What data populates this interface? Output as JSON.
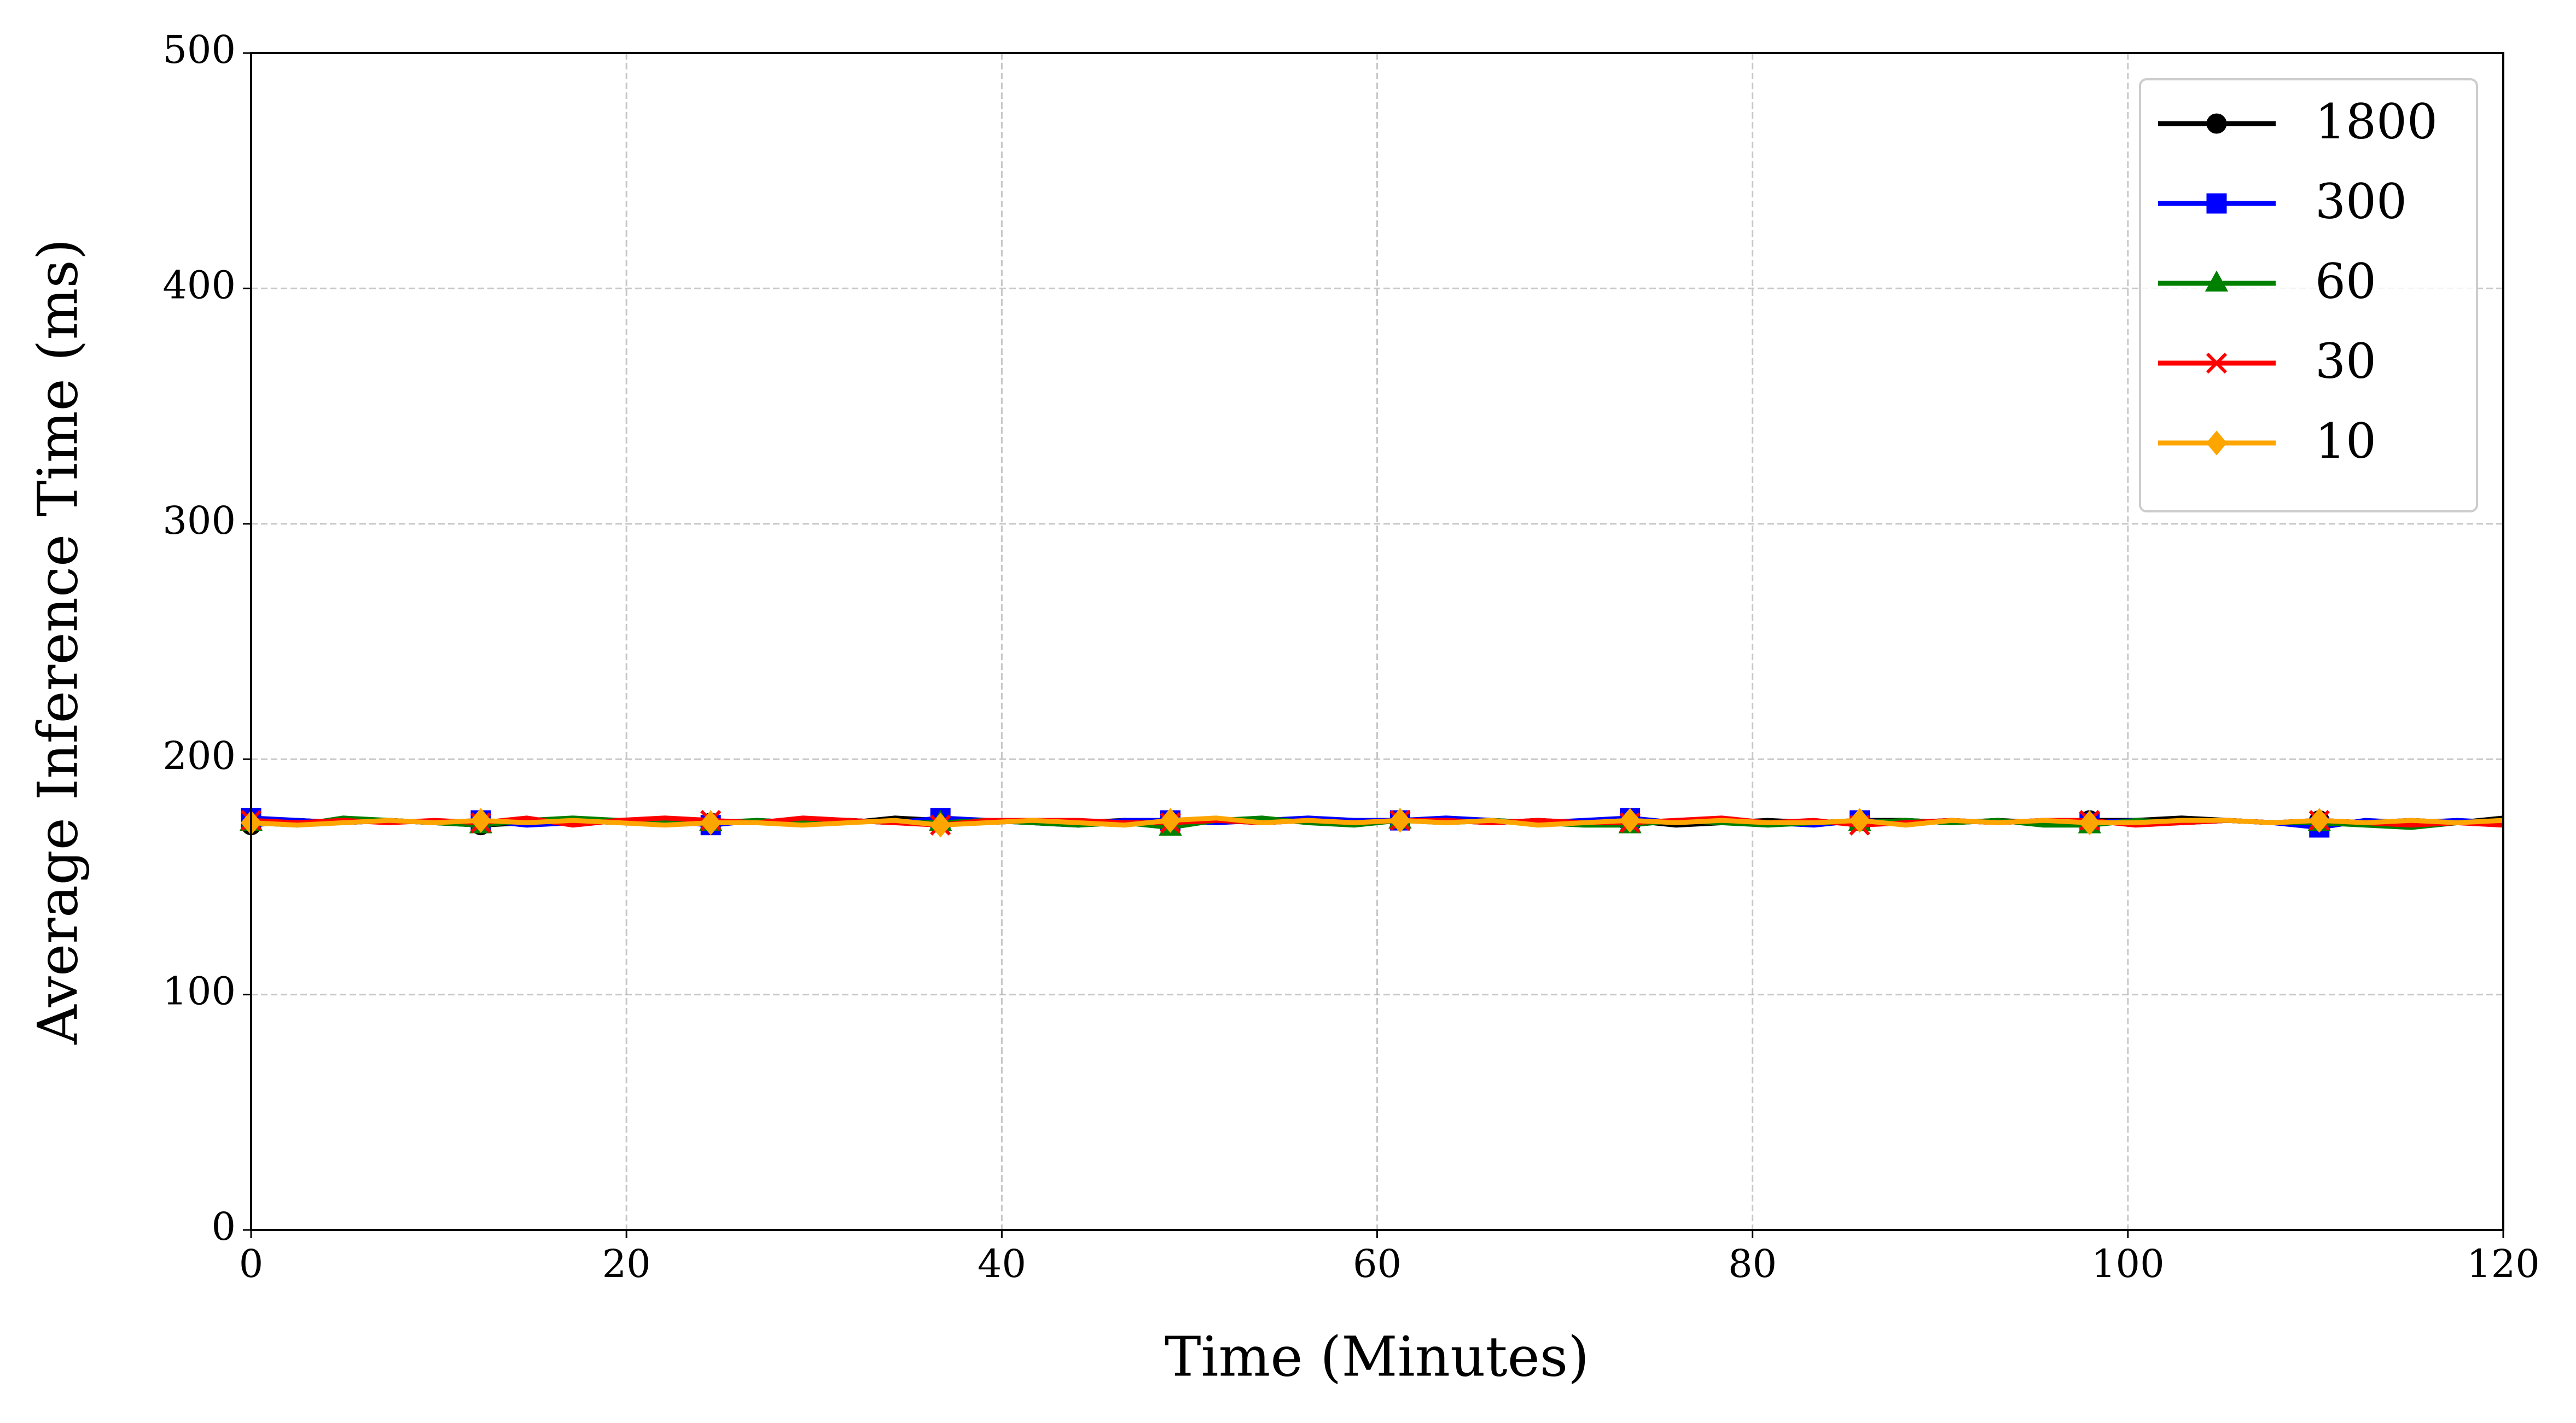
{
  "chart_data": {
    "type": "line",
    "xlabel": "Time (Minutes)",
    "ylabel": "Average Inference Time (ms)",
    "x": [
      0,
      2.45,
      4.9,
      7.35,
      9.8,
      12.24,
      14.69,
      17.14,
      19.59,
      22.04,
      24.49,
      26.94,
      29.39,
      31.84,
      34.29,
      36.73,
      39.18,
      41.63,
      44.08,
      46.53,
      48.98,
      51.43,
      53.88,
      56.33,
      58.78,
      61.22,
      63.67,
      66.12,
      68.57,
      71.02,
      73.47,
      75.92,
      78.37,
      80.82,
      83.27,
      85.71,
      88.16,
      90.61,
      93.06,
      95.51,
      97.96,
      100.41,
      102.86,
      105.31,
      107.76,
      110.2,
      112.65,
      115.1,
      117.55,
      120
    ],
    "series": [
      {
        "name": "1800",
        "color": "#000000",
        "marker": "o",
        "values": [
          172,
          174,
          173,
          174,
          173,
          172,
          173,
          174,
          173,
          174,
          173,
          173,
          174,
          173,
          175,
          174,
          173,
          174,
          173,
          174,
          173,
          174,
          173,
          174,
          173,
          174,
          174,
          173,
          174,
          173,
          174,
          172,
          173,
          174,
          173,
          174,
          174,
          173,
          174,
          173,
          174,
          174,
          175,
          174,
          173,
          174,
          173,
          174,
          173,
          175
        ]
      },
      {
        "name": "300",
        "color": "#0000ff",
        "marker": "s",
        "values": [
          175,
          174,
          173,
          174,
          173,
          174,
          172,
          173,
          174,
          174,
          172,
          174,
          173,
          174,
          173,
          175,
          174,
          173,
          172,
          174,
          174,
          173,
          174,
          175,
          174,
          174,
          175,
          174,
          173,
          174,
          175,
          173,
          174,
          173,
          172,
          174,
          173,
          174,
          173,
          174,
          173,
          174,
          173,
          174,
          173,
          171,
          174,
          173,
          174,
          173
        ]
      },
      {
        "name": "60",
        "color": "#008000",
        "marker": "^",
        "values": [
          173,
          172,
          175,
          174,
          173,
          172,
          174,
          175,
          174,
          173,
          173,
          174,
          173,
          174,
          173,
          173,
          174,
          173,
          172,
          173,
          171,
          174,
          175,
          173,
          172,
          174,
          173,
          174,
          173,
          172,
          172,
          174,
          173,
          172,
          173,
          173,
          174,
          173,
          174,
          172,
          172,
          174,
          173,
          174,
          173,
          173,
          172,
          171,
          173,
          174
        ]
      },
      {
        "name": "30",
        "color": "#ff0000",
        "marker": "x",
        "values": [
          174,
          173,
          174,
          173,
          174,
          173,
          175,
          172,
          174,
          175,
          174,
          173,
          175,
          174,
          173,
          172,
          174,
          174,
          174,
          173,
          173,
          174,
          173,
          174,
          173,
          174,
          174,
          173,
          174,
          173,
          173,
          174,
          175,
          173,
          174,
          172,
          173,
          174,
          173,
          174,
          174,
          172,
          173,
          174,
          173,
          174,
          173,
          172,
          173,
          172
        ]
      },
      {
        "name": "10",
        "color": "#ffa500",
        "marker": "D",
        "values": [
          173,
          172,
          173,
          174,
          173,
          174,
          173,
          174,
          173,
          172,
          173,
          173,
          172,
          173,
          174,
          172,
          173,
          174,
          173,
          172,
          174,
          175,
          173,
          174,
          173,
          174,
          173,
          174,
          172,
          173,
          174,
          173,
          174,
          173,
          173,
          174,
          172,
          174,
          173,
          174,
          173,
          173,
          174,
          174,
          173,
          174,
          173,
          174,
          173,
          174
        ]
      }
    ],
    "markevery": 5,
    "xlim": [
      0,
      120
    ],
    "xticks": [
      0,
      20,
      40,
      60,
      80,
      100,
      120
    ],
    "ylim": [
      0,
      500
    ],
    "yticks": [
      0,
      100,
      200,
      300,
      400,
      500
    ],
    "grid": true,
    "legend": "upper right"
  }
}
